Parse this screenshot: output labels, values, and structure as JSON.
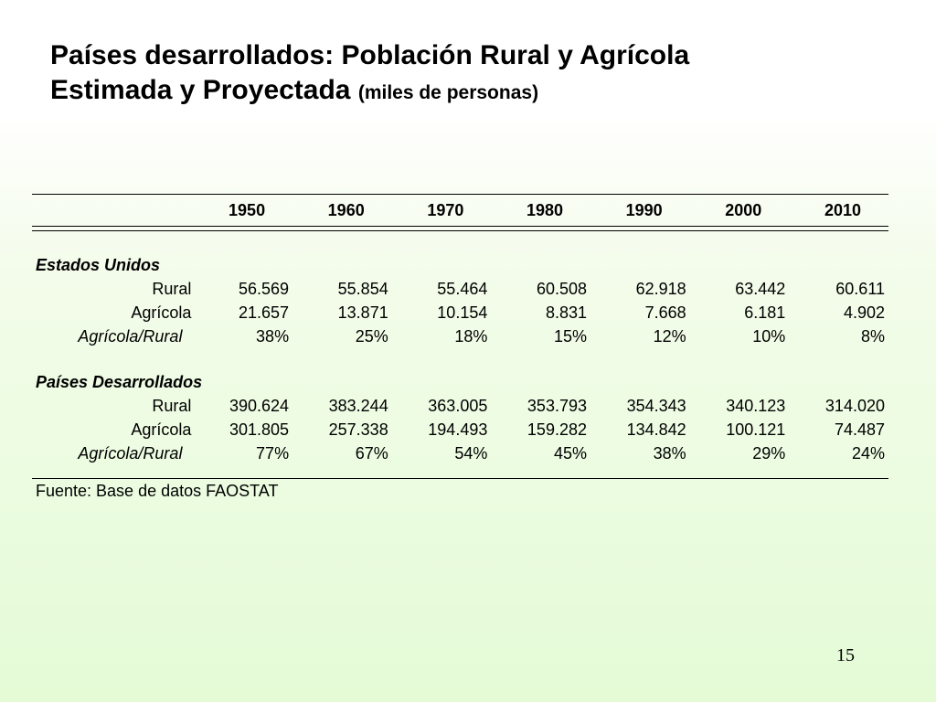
{
  "slide": {
    "title_line1": "Países desarrollados:  Población Rural y Agrícola",
    "title_line2": "Estimada y Proyectada ",
    "title_unit": "(miles de personas)",
    "page_number": "15"
  },
  "table": {
    "years": [
      "1950",
      "1960",
      "1970",
      "1980",
      "1990",
      "2000",
      "2010"
    ],
    "groups": [
      {
        "name": "Estados Unidos",
        "rows": [
          {
            "label": "Rural",
            "values": [
              "56.569",
              "55.854",
              "55.464",
              "60.508",
              "62.918",
              "63.442",
              "60.611"
            ]
          },
          {
            "label": "Agrícola",
            "values": [
              "21.657",
              "13.871",
              "10.154",
              "8.831",
              "7.668",
              "6.181",
              "4.902"
            ]
          },
          {
            "label": "Agrícola/Rural",
            "values": [
              "38%",
              "25%",
              "18%",
              "15%",
              "12%",
              "10%",
              "8%"
            ]
          }
        ]
      },
      {
        "name": "Países Desarrollados",
        "rows": [
          {
            "label": "Rural",
            "values": [
              "390.624",
              "383.244",
              "363.005",
              "353.793",
              "354.343",
              "340.123",
              "314.020"
            ]
          },
          {
            "label": "Agrícola",
            "values": [
              "301.805",
              "257.338",
              "194.493",
              "159.282",
              "134.842",
              "100.121",
              "74.487"
            ]
          },
          {
            "label": "Agrícola/Rural",
            "values": [
              "77%",
              "67%",
              "54%",
              "45%",
              "38%",
              "29%",
              "24%"
            ]
          }
        ]
      }
    ],
    "source": "Fuente: Base de datos FAOSTAT"
  }
}
